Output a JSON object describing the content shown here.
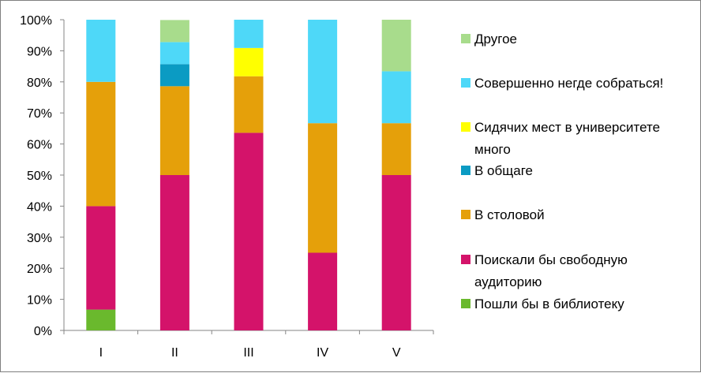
{
  "chart_data": {
    "type": "bar",
    "stacked": true,
    "percent": true,
    "categories": [
      "I",
      "II",
      "III",
      "IV",
      "V"
    ],
    "ylim": [
      0,
      100
    ],
    "yticks": [
      "0%",
      "10%",
      "20%",
      "30%",
      "40%",
      "50%",
      "60%",
      "70%",
      "80%",
      "90%",
      "100%"
    ],
    "grid": false,
    "legend_position": "right",
    "series": [
      {
        "name": "Пошли бы в библиотеку",
        "color": "#6ab92d",
        "values": [
          6.7,
          0,
          0,
          0,
          0
        ]
      },
      {
        "name": "Поискали бы свободную аудиторию",
        "color": "#d4136a",
        "values": [
          33.3,
          50,
          63.6,
          25,
          50
        ]
      },
      {
        "name": "В столовой",
        "color": "#e5a00a",
        "values": [
          40,
          28.6,
          18.2,
          41.7,
          16.7
        ]
      },
      {
        "name": "В общаге",
        "color": "#0b9bc3",
        "values": [
          0,
          7.1,
          0,
          0,
          0
        ]
      },
      {
        "name": "Сидячих мест в университете много",
        "color": "#ffff00",
        "values": [
          0,
          0,
          9.1,
          0,
          0
        ]
      },
      {
        "name": "Совершенно негде собраться!",
        "color": "#4ed8f8",
        "values": [
          20,
          7.1,
          9.1,
          33.3,
          16.7
        ]
      },
      {
        "name": "Другое",
        "color": "#a8dc8c",
        "values": [
          0,
          7.1,
          0,
          0,
          16.6
        ]
      }
    ],
    "legend": [
      {
        "series_index": 6,
        "lines": [
          "Другое"
        ]
      },
      {
        "series_index": 5,
        "lines": [
          "Совершенно негде собраться!"
        ]
      },
      {
        "series_index": 4,
        "lines": [
          "Сидячих мест в университете",
          "много"
        ]
      },
      {
        "series_index": 3,
        "lines": [
          "В общаге"
        ]
      },
      {
        "series_index": 2,
        "lines": [
          "В столовой"
        ]
      },
      {
        "series_index": 1,
        "lines": [
          "Поискали бы свободную",
          "аудиторию"
        ]
      },
      {
        "series_index": 0,
        "lines": [
          "Пошли бы в библиотеку"
        ]
      }
    ]
  }
}
